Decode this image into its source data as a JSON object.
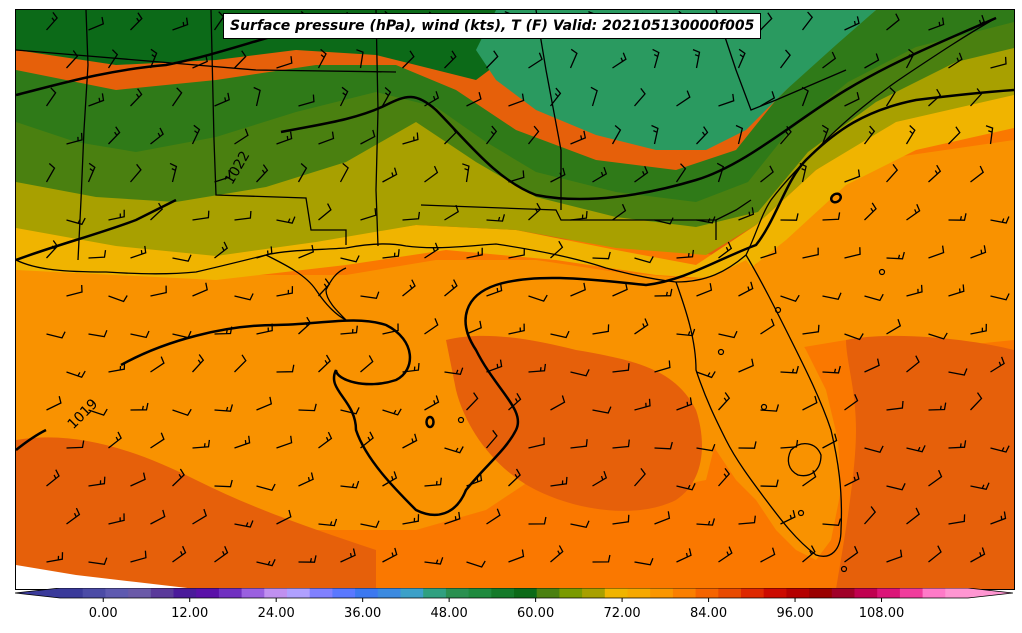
{
  "title": "Surface pressure (hPa), wind (kts), T (F) Valid: 202105130000f005",
  "isobars": {
    "labels": [
      "1022",
      "1019"
    ],
    "color": "#000000"
  },
  "colorbar": {
    "min": -6,
    "max": 120,
    "step": 3,
    "ticks": [
      "0.00",
      "12.00",
      "24.00",
      "36.00",
      "48.00",
      "60.00",
      "72.00",
      "84.00",
      "96.00",
      "108.00"
    ],
    "tick_values": [
      0,
      12,
      24,
      36,
      48,
      60,
      72,
      84,
      96,
      108
    ],
    "colors": [
      "#3a3a9a",
      "#4b4ba6",
      "#5e5ab0",
      "#6a5aa8",
      "#5a3a9a",
      "#4a1a9a",
      "#5a10a8",
      "#7030c0",
      "#9a60e0",
      "#c090f0",
      "#b0a0ff",
      "#8080ff",
      "#5a78ff",
      "#3c78f0",
      "#3c8ae0",
      "#3ca0c8",
      "#30a080",
      "#2a9050",
      "#1e8a3e",
      "#147a2a",
      "#0c6a18",
      "#4a8010",
      "#7a9a00",
      "#a8a000",
      "#f0b400",
      "#f6a800",
      "#fa9600",
      "#fa7f00",
      "#f56400",
      "#e84a00",
      "#de2800",
      "#cc0a00",
      "#b40000",
      "#9a0000",
      "#a00028",
      "#c00050",
      "#dc1478",
      "#f03c9c",
      "#ff7ac8",
      "#ff96d2"
    ]
  },
  "colors": {
    "warm_gulf": "#fa7800",
    "hot": "#e6600a",
    "coast_yellow": "#f0b400",
    "olive": "#a8a000",
    "green_light": "#4a8010",
    "green_mid": "#2f7a18",
    "green_dark": "#0c6a18",
    "teal_green": "#2a9a60",
    "land_line": "#000000"
  }
}
